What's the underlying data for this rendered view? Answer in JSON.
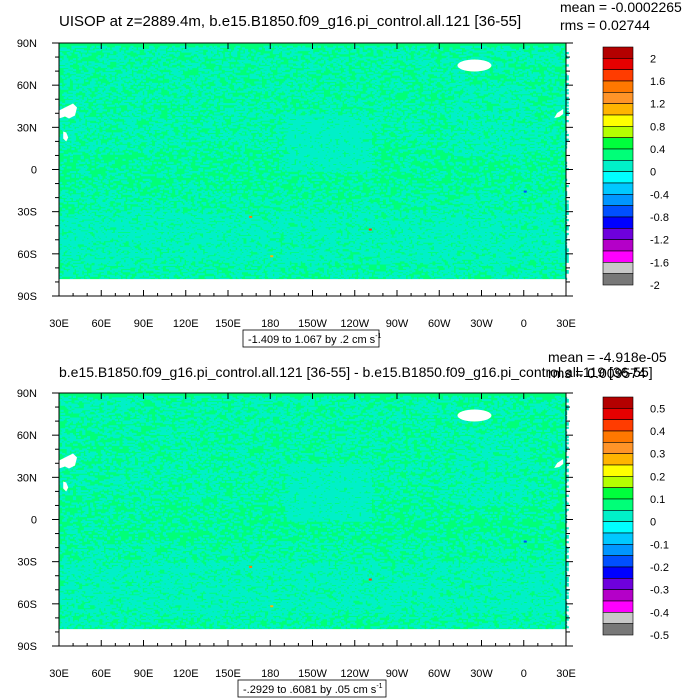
{
  "chart_data": [
    {
      "type": "heatmap",
      "title": "UISOP at z=2889.4m, b.e15.B1850.f09_g16.pi_control.all.121 [36-55]",
      "stats": {
        "mean": "mean = -0.0002265",
        "rms": "rms = 0.02744"
      },
      "range_label": "-1.409 to 1.067 by .2 cm s",
      "range_unit_exp": "-1",
      "x_ticks": [
        "30E",
        "60E",
        "90E",
        "120E",
        "150E",
        "180",
        "150W",
        "120W",
        "90W",
        "60W",
        "30W",
        "0",
        "30E"
      ],
      "y_ticks": [
        "90N",
        "60N",
        "30N",
        "0",
        "30S",
        "60S",
        "90S"
      ],
      "xlim": [
        30,
        390
      ],
      "ylim": [
        -90,
        90
      ],
      "colorbar_labels": [
        "2",
        "1.6",
        "1.2",
        "0.8",
        "0.4",
        "0",
        "-0.4",
        "-0.8",
        "-1.2",
        "-1.6",
        "-2"
      ],
      "colorbar_min": -2,
      "colorbar_max": 2,
      "colorbar_step": 0.2,
      "dominant_value_range": [
        -0.2,
        0.2
      ]
    },
    {
      "type": "heatmap",
      "title": "b.e15.B1850.f09_g16.pi_control.all.121 [36-55] - b.e15.B1850.f09_g16.pi_control.all.119 [36-55]",
      "stats": {
        "mean": "mean = -4.918e-05",
        "rms": "rms = 0.009574"
      },
      "range_label": "-.2929 to .6081 by .05 cm s",
      "range_unit_exp": "-1",
      "x_ticks": [
        "30E",
        "60E",
        "90E",
        "120E",
        "150E",
        "180",
        "150W",
        "120W",
        "90W",
        "60W",
        "30W",
        "0",
        "30E"
      ],
      "y_ticks": [
        "90N",
        "60N",
        "30N",
        "0",
        "30S",
        "60S",
        "90S"
      ],
      "xlim": [
        30,
        390
      ],
      "ylim": [
        -90,
        90
      ],
      "colorbar_labels": [
        "0.5",
        "0.4",
        "0.3",
        "0.2",
        "0.1",
        "0",
        "-0.1",
        "-0.2",
        "-0.3",
        "-0.4",
        "-0.5"
      ],
      "colorbar_min": -0.5,
      "colorbar_max": 0.5,
      "colorbar_step": 0.05,
      "dominant_value_range": [
        -0.05,
        0.05
      ]
    }
  ],
  "colors": {
    "palette_top_to_bottom": [
      "#b40000",
      "#e60000",
      "#ff3c00",
      "#ff7800",
      "#ff9428",
      "#ffb400",
      "#ffff00",
      "#b4ff00",
      "#00ff3c",
      "#00ff78",
      "#00f0c8",
      "#00ffff",
      "#00c8ff",
      "#0096ff",
      "#0050ff",
      "#0000ff",
      "#6e00dc",
      "#b400c8",
      "#ff00ff",
      "#c8c8c8",
      "#787878"
    ],
    "green": "#00ff78",
    "cyan": "#00f0c8",
    "land_white": "#ffffff"
  }
}
